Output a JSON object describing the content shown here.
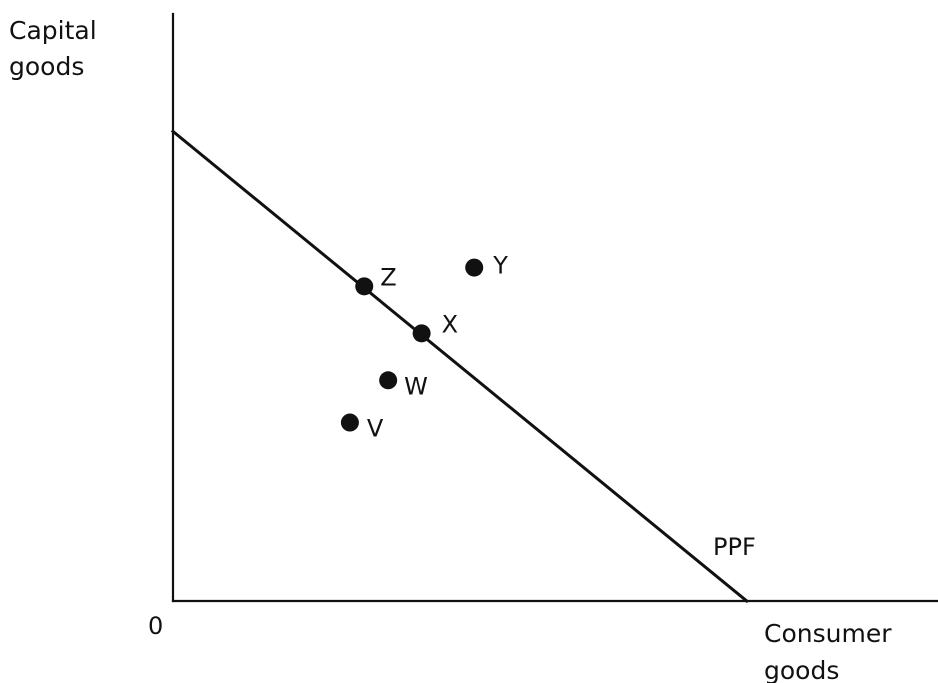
{
  "chart_data": {
    "type": "line",
    "ylabel": [
      "Capital",
      "goods"
    ],
    "xlabel": [
      "Consumer",
      "goods"
    ],
    "origin_label": "0",
    "series": [
      {
        "name": "PPF",
        "points": [
          {
            "x": 0,
            "y": 10
          },
          {
            "x": 12,
            "y": 0
          }
        ]
      }
    ],
    "points": [
      {
        "label": "Z",
        "x": 4,
        "y": 6.7
      },
      {
        "label": "X",
        "x": 5.2,
        "y": 5.7
      },
      {
        "label": "Y",
        "x": 6.3,
        "y": 7.1
      },
      {
        "label": "W",
        "x": 4.5,
        "y": 4.7
      },
      {
        "label": "V",
        "x": 3.7,
        "y": 3.8
      }
    ],
    "xlim": [
      0,
      16
    ],
    "ylim": [
      0,
      12.5
    ],
    "grid": false,
    "legend": "none",
    "colors": {
      "line": "#111111",
      "points": "#111111",
      "background": "#ffffff"
    }
  }
}
